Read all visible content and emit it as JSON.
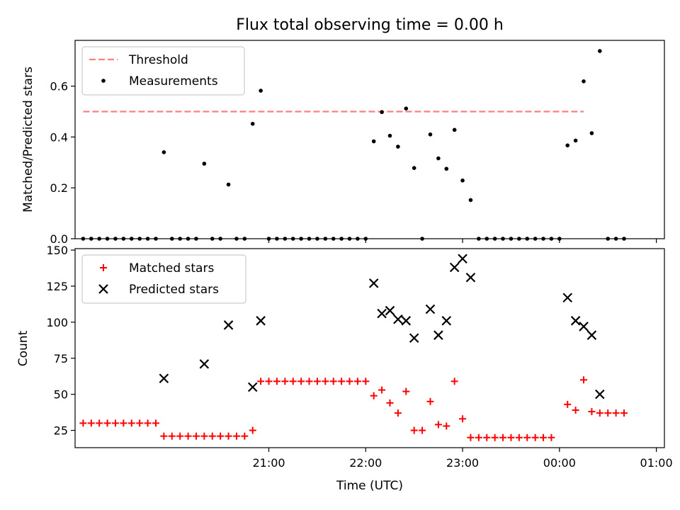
{
  "chart_data": {
    "title": "Flux total observing time = 0.00 h",
    "x_axis": {
      "label": "Time (UTC)",
      "unit": "minutes since 20:00 UTC",
      "range": [
        -60,
        305
      ],
      "ticks": [
        {
          "value": 60,
          "label": "21:00"
        },
        {
          "value": 120,
          "label": "22:00"
        },
        {
          "value": 180,
          "label": "23:00"
        },
        {
          "value": 240,
          "label": "00:00"
        },
        {
          "value": 300,
          "label": "01:00"
        }
      ]
    },
    "panels": [
      {
        "id": "ratio",
        "type": "scatter",
        "ylabel": "Matched/Predicted stars",
        "ylim": [
          0,
          0.78
        ],
        "yticks": [
          {
            "value": 0,
            "label": "0.0"
          },
          {
            "value": 0.2,
            "label": "0.2"
          },
          {
            "value": 0.4,
            "label": "0.4"
          },
          {
            "value": 0.6,
            "label": "0.6"
          }
        ],
        "legend": {
          "position": "top-left",
          "entries": [
            {
              "label": "Threshold",
              "color": "#ff7f7f",
              "marker": "dashed-line"
            },
            {
              "label": "Measurements",
              "color": "#000000",
              "marker": "dot"
            }
          ]
        },
        "threshold": {
          "value": 0.5,
          "x_start": -55,
          "x_end": 255,
          "color": "#ff7f7f"
        },
        "series": [
          {
            "name": "Measurements",
            "color": "#000000",
            "points": [
              [
                -55,
                0
              ],
              [
                -50,
                0
              ],
              [
                -45,
                0
              ],
              [
                -40,
                0
              ],
              [
                -35,
                0
              ],
              [
                -30,
                0
              ],
              [
                -25,
                0
              ],
              [
                -20,
                0
              ],
              [
                -15,
                0
              ],
              [
                -10,
                0
              ],
              [
                -5,
                0.34
              ],
              [
                0,
                0
              ],
              [
                5,
                0
              ],
              [
                10,
                0
              ],
              [
                15,
                0
              ],
              [
                20,
                0.295
              ],
              [
                25,
                0
              ],
              [
                30,
                0
              ],
              [
                35,
                0.213
              ],
              [
                40,
                0
              ],
              [
                45,
                0
              ],
              [
                50,
                0.452
              ],
              [
                55,
                0.582
              ],
              [
                60,
                0
              ],
              [
                65,
                0
              ],
              [
                70,
                0
              ],
              [
                75,
                0
              ],
              [
                80,
                0
              ],
              [
                85,
                0
              ],
              [
                90,
                0
              ],
              [
                95,
                0
              ],
              [
                100,
                0
              ],
              [
                105,
                0
              ],
              [
                110,
                0
              ],
              [
                115,
                0
              ],
              [
                120,
                0
              ],
              [
                125,
                0.383
              ],
              [
                130,
                0.498
              ],
              [
                135,
                0.405
              ],
              [
                140,
                0.362
              ],
              [
                145,
                0.512
              ],
              [
                150,
                0.278
              ],
              [
                155,
                0
              ],
              [
                160,
                0.41
              ],
              [
                165,
                0.316
              ],
              [
                170,
                0.275
              ],
              [
                175,
                0.428
              ],
              [
                180,
                0.229
              ],
              [
                185,
                0.152
              ],
              [
                190,
                0
              ],
              [
                195,
                0
              ],
              [
                200,
                0
              ],
              [
                205,
                0
              ],
              [
                210,
                0
              ],
              [
                215,
                0
              ],
              [
                220,
                0
              ],
              [
                225,
                0
              ],
              [
                230,
                0
              ],
              [
                235,
                0
              ],
              [
                240,
                0
              ],
              [
                245,
                0.367
              ],
              [
                250,
                0.386
              ],
              [
                255,
                0.619
              ],
              [
                260,
                0.415
              ],
              [
                265,
                0.738
              ],
              [
                270,
                0
              ],
              [
                275,
                0
              ],
              [
                280,
                0
              ]
            ]
          }
        ]
      },
      {
        "id": "counts",
        "type": "scatter",
        "ylabel": "Count",
        "ylim": [
          13,
          151
        ],
        "yticks": [
          {
            "value": 25,
            "label": "25"
          },
          {
            "value": 50,
            "label": "50"
          },
          {
            "value": 75,
            "label": "75"
          },
          {
            "value": 100,
            "label": "100"
          },
          {
            "value": 125,
            "label": "125"
          },
          {
            "value": 150,
            "label": "150"
          }
        ],
        "legend": {
          "position": "top-left",
          "entries": [
            {
              "label": "Matched stars",
              "color": "#ff0000",
              "marker": "plus"
            },
            {
              "label": "Predicted stars",
              "color": "#000000",
              "marker": "x"
            }
          ]
        },
        "series": [
          {
            "name": "Matched stars",
            "color": "#ff0000",
            "marker": "plus",
            "points": [
              [
                -55,
                30
              ],
              [
                -50,
                30
              ],
              [
                -45,
                30
              ],
              [
                -40,
                30
              ],
              [
                -35,
                30
              ],
              [
                -30,
                30
              ],
              [
                -25,
                30
              ],
              [
                -20,
                30
              ],
              [
                -15,
                30
              ],
              [
                -10,
                30
              ],
              [
                -5,
                21
              ],
              [
                0,
                21
              ],
              [
                5,
                21
              ],
              [
                10,
                21
              ],
              [
                15,
                21
              ],
              [
                20,
                21
              ],
              [
                25,
                21
              ],
              [
                30,
                21
              ],
              [
                35,
                21
              ],
              [
                40,
                21
              ],
              [
                45,
                21
              ],
              [
                50,
                25
              ],
              [
                55,
                59
              ],
              [
                60,
                59
              ],
              [
                65,
                59
              ],
              [
                70,
                59
              ],
              [
                75,
                59
              ],
              [
                80,
                59
              ],
              [
                85,
                59
              ],
              [
                90,
                59
              ],
              [
                95,
                59
              ],
              [
                100,
                59
              ],
              [
                105,
                59
              ],
              [
                110,
                59
              ],
              [
                115,
                59
              ],
              [
                120,
                59
              ],
              [
                125,
                49
              ],
              [
                130,
                53
              ],
              [
                135,
                44
              ],
              [
                140,
                37
              ],
              [
                145,
                52
              ],
              [
                150,
                25
              ],
              [
                155,
                25
              ],
              [
                160,
                45
              ],
              [
                165,
                29
              ],
              [
                170,
                28
              ],
              [
                175,
                59
              ],
              [
                180,
                33
              ],
              [
                185,
                20
              ],
              [
                190,
                20
              ],
              [
                195,
                20
              ],
              [
                200,
                20
              ],
              [
                205,
                20
              ],
              [
                210,
                20
              ],
              [
                215,
                20
              ],
              [
                220,
                20
              ],
              [
                225,
                20
              ],
              [
                230,
                20
              ],
              [
                235,
                20
              ],
              [
                245,
                43
              ],
              [
                250,
                39
              ],
              [
                255,
                60
              ],
              [
                260,
                38
              ],
              [
                265,
                37
              ],
              [
                270,
                37
              ],
              [
                275,
                37
              ],
              [
                280,
                37
              ]
            ]
          },
          {
            "name": "Predicted stars",
            "color": "#000000",
            "marker": "x",
            "points": [
              [
                -5,
                61
              ],
              [
                20,
                71
              ],
              [
                35,
                98
              ],
              [
                50,
                55
              ],
              [
                55,
                101
              ],
              [
                125,
                127
              ],
              [
                130,
                106
              ],
              [
                135,
                108
              ],
              [
                140,
                102
              ],
              [
                145,
                101
              ],
              [
                150,
                89
              ],
              [
                160,
                109
              ],
              [
                165,
                91
              ],
              [
                170,
                101
              ],
              [
                175,
                138
              ],
              [
                180,
                144
              ],
              [
                185,
                131
              ],
              [
                245,
                117
              ],
              [
                250,
                101
              ],
              [
                255,
                97
              ],
              [
                260,
                91
              ],
              [
                265,
                50
              ]
            ]
          }
        ]
      }
    ]
  }
}
